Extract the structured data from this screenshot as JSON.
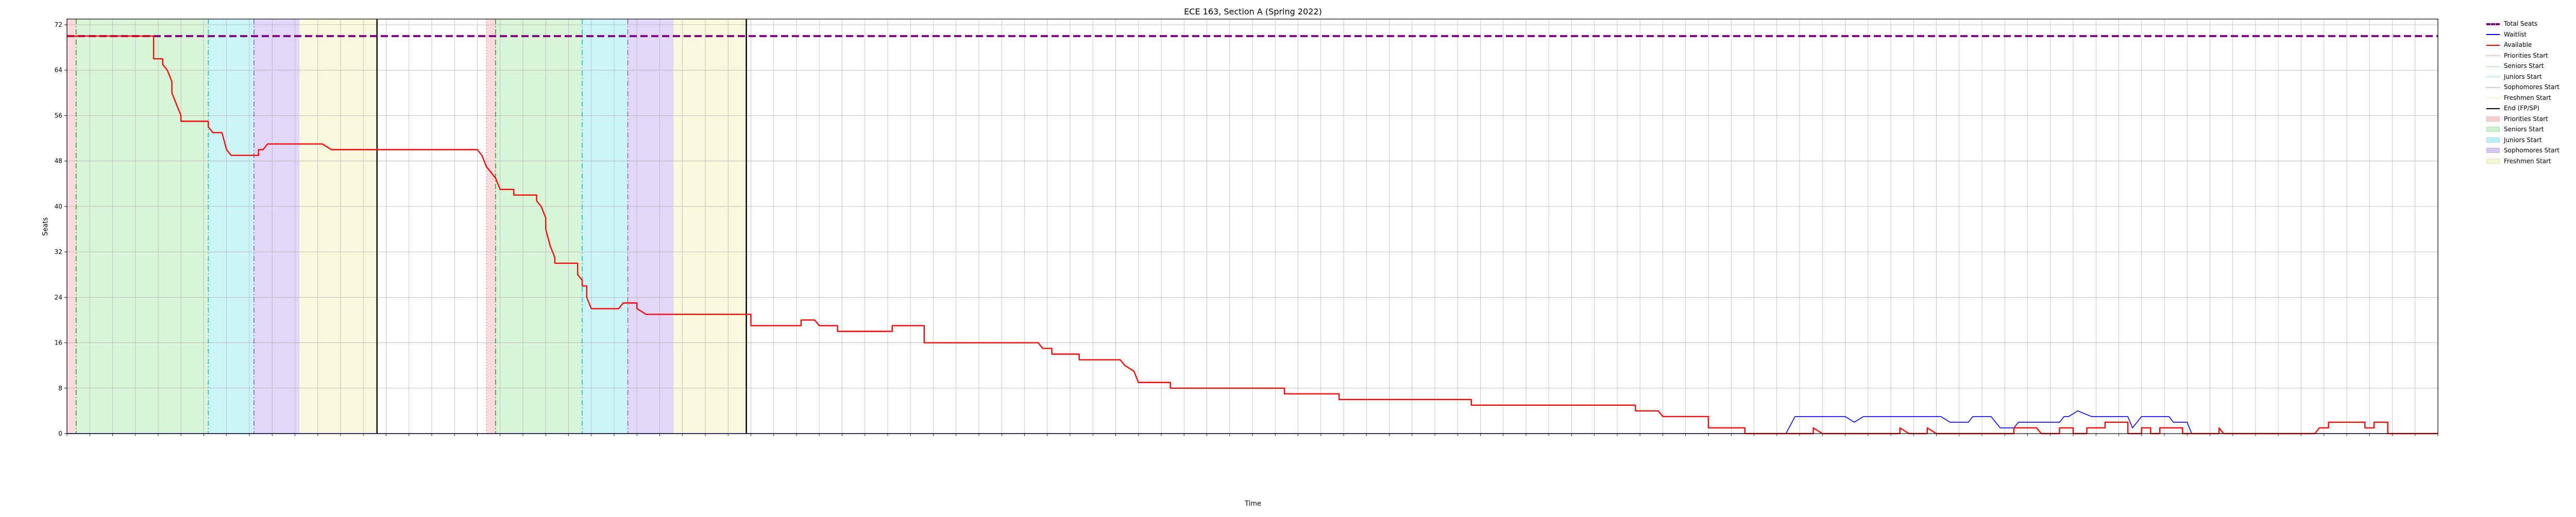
{
  "chart_data": {
    "type": "line",
    "title": "ECE 163, Section A (Spring 2022)",
    "xlabel": "Time",
    "ylabel": "Seats",
    "ylim": [
      0,
      73
    ],
    "yticks": [
      0,
      8,
      16,
      24,
      32,
      40,
      48,
      56,
      64,
      72
    ],
    "grid": true,
    "legend_position": "outside right, top",
    "x_is_time_index": true,
    "xlim": [
      0,
      520
    ],
    "colors": {
      "total": "#800080",
      "waitlist": "#0000ff",
      "available": "#ff0000",
      "priorities": "#f4a6a6",
      "seniors": "#9de59d",
      "juniors": "#7fe6ea",
      "sophomores": "#b39ae8",
      "freshmen": "#eeeeaa",
      "end": "#000000"
    },
    "series": [
      {
        "name": "Total Seats",
        "style": "dashed",
        "color_key": "total",
        "points": [
          [
            0,
            70
          ],
          [
            520,
            70
          ]
        ]
      },
      {
        "name": "Waitlist",
        "style": "solid",
        "color_key": "waitlist",
        "points": [
          [
            0,
            0
          ],
          [
            377,
            0
          ],
          [
            379,
            3
          ],
          [
            390,
            3
          ],
          [
            392,
            2
          ],
          [
            394,
            3
          ],
          [
            411,
            3
          ],
          [
            413,
            2
          ],
          [
            417,
            2
          ],
          [
            418,
            3
          ],
          [
            422,
            3
          ],
          [
            423,
            2
          ],
          [
            424,
            1
          ],
          [
            427,
            1
          ],
          [
            428,
            2
          ],
          [
            437,
            2
          ],
          [
            438,
            3
          ],
          [
            439,
            3
          ],
          [
            441,
            4
          ],
          [
            444,
            3
          ],
          [
            452,
            3
          ],
          [
            453,
            1
          ],
          [
            454,
            2
          ],
          [
            455,
            3
          ],
          [
            461,
            3
          ],
          [
            462,
            2
          ],
          [
            465,
            2
          ],
          [
            466,
            0
          ],
          [
            520,
            0
          ]
        ]
      },
      {
        "name": "Available",
        "style": "solid",
        "color_key": "available",
        "points": [
          [
            0,
            70
          ],
          [
            19,
            70
          ],
          [
            19,
            66
          ],
          [
            21,
            66
          ],
          [
            21,
            65
          ],
          [
            22,
            64
          ],
          [
            23,
            62
          ],
          [
            23,
            60
          ],
          [
            24,
            58
          ],
          [
            25,
            56
          ],
          [
            25,
            55
          ],
          [
            31,
            55
          ],
          [
            31,
            54
          ],
          [
            32,
            53
          ],
          [
            34,
            53
          ],
          [
            35,
            50
          ],
          [
            36,
            49
          ],
          [
            42,
            49
          ],
          [
            42,
            50
          ],
          [
            43,
            50
          ],
          [
            44,
            51
          ],
          [
            56,
            51
          ],
          [
            58,
            50
          ],
          [
            90,
            50
          ],
          [
            91,
            49
          ],
          [
            92,
            47
          ],
          [
            93,
            46
          ],
          [
            94,
            45
          ],
          [
            95,
            43
          ],
          [
            98,
            43
          ],
          [
            98,
            42
          ],
          [
            103,
            42
          ],
          [
            103,
            41
          ],
          [
            104,
            40
          ],
          [
            105,
            38
          ],
          [
            105,
            36
          ],
          [
            106,
            33
          ],
          [
            107,
            31
          ],
          [
            107,
            30
          ],
          [
            112,
            30
          ],
          [
            112,
            28
          ],
          [
            113,
            27
          ],
          [
            113,
            26
          ],
          [
            114,
            26
          ],
          [
            114,
            24
          ],
          [
            115,
            22
          ],
          [
            121,
            22
          ],
          [
            122,
            23
          ],
          [
            125,
            23
          ],
          [
            125,
            22
          ],
          [
            127,
            21
          ],
          [
            150,
            21
          ],
          [
            150,
            19
          ],
          [
            161,
            19
          ],
          [
            161,
            20
          ],
          [
            164,
            20
          ],
          [
            165,
            19
          ],
          [
            169,
            19
          ],
          [
            169,
            18
          ],
          [
            181,
            18
          ],
          [
            181,
            19
          ],
          [
            188,
            19
          ],
          [
            188,
            16
          ],
          [
            213,
            16
          ],
          [
            214,
            15
          ],
          [
            216,
            15
          ],
          [
            216,
            14
          ],
          [
            222,
            14
          ],
          [
            222,
            13
          ],
          [
            231,
            13
          ],
          [
            232,
            12
          ],
          [
            234,
            11
          ],
          [
            235,
            9
          ],
          [
            242,
            9
          ],
          [
            242,
            8
          ],
          [
            267,
            8
          ],
          [
            267,
            7
          ],
          [
            279,
            7
          ],
          [
            279,
            6
          ],
          [
            308,
            6
          ],
          [
            308,
            5
          ],
          [
            344,
            5
          ],
          [
            344,
            4
          ],
          [
            349,
            4
          ],
          [
            350,
            3
          ],
          [
            360,
            3
          ],
          [
            360,
            1
          ],
          [
            368,
            1
          ],
          [
            368,
            0
          ],
          [
            377,
            0
          ],
          [
            379,
            0
          ],
          [
            383,
            0
          ],
          [
            383,
            1
          ],
          [
            385,
            0
          ],
          [
            402,
            0
          ],
          [
            402,
            1
          ],
          [
            404,
            0
          ],
          [
            408,
            0
          ],
          [
            408,
            1
          ],
          [
            410,
            0
          ],
          [
            427,
            0
          ],
          [
            427,
            1
          ],
          [
            432,
            1
          ],
          [
            433,
            0
          ],
          [
            437,
            0
          ],
          [
            437,
            1
          ],
          [
            440,
            1
          ],
          [
            440,
            0
          ],
          [
            443,
            0
          ],
          [
            443,
            1
          ],
          [
            447,
            1
          ],
          [
            447,
            2
          ],
          [
            452,
            2
          ],
          [
            452,
            0
          ],
          [
            455,
            0
          ],
          [
            455,
            1
          ],
          [
            457,
            1
          ],
          [
            457,
            0
          ],
          [
            459,
            0
          ],
          [
            459,
            1
          ],
          [
            464,
            1
          ],
          [
            464,
            0
          ],
          [
            472,
            0
          ],
          [
            472,
            1
          ],
          [
            473,
            0
          ],
          [
            493,
            0
          ],
          [
            494,
            1
          ],
          [
            496,
            1
          ],
          [
            496,
            2
          ],
          [
            504,
            2
          ],
          [
            504,
            1
          ],
          [
            506,
            1
          ],
          [
            506,
            2
          ],
          [
            509,
            2
          ],
          [
            509,
            0
          ],
          [
            520,
            0
          ]
        ]
      }
    ],
    "spans": [
      {
        "name": "Priorities Start",
        "from": 0,
        "to": 2,
        "color_key": "priorities"
      },
      {
        "name": "Seniors Start",
        "from": 2,
        "to": 31,
        "color_key": "seniors"
      },
      {
        "name": "Juniors Start",
        "from": 31,
        "to": 41,
        "color_key": "juniors"
      },
      {
        "name": "Sophomores Start",
        "from": 41,
        "to": 51,
        "color_key": "sophomores"
      },
      {
        "name": "Freshmen Start",
        "from": 51,
        "to": 68,
        "color_key": "freshmen"
      },
      {
        "name": "Priorities Start",
        "from": 92,
        "to": 94,
        "color_key": "priorities"
      },
      {
        "name": "Seniors Start",
        "from": 94,
        "to": 113,
        "color_key": "seniors"
      },
      {
        "name": "Juniors Start",
        "from": 113,
        "to": 123,
        "color_key": "juniors"
      },
      {
        "name": "Sophomores Start",
        "from": 123,
        "to": 133,
        "color_key": "sophomores"
      },
      {
        "name": "Freshmen Start",
        "from": 133,
        "to": 149,
        "color_key": "freshmen"
      }
    ],
    "vlines": [
      {
        "name": "Priorities Start",
        "x": 0,
        "style": "dotted",
        "color": "#d08a8a"
      },
      {
        "name": "Seniors Start",
        "x": 2,
        "style": "dashdot",
        "color": "#2ca02c"
      },
      {
        "name": "Juniors Start",
        "x": 31,
        "style": "dashdot",
        "color": "#17becf"
      },
      {
        "name": "Sophomores Start",
        "x": 41,
        "style": "dashdot",
        "color": "#9467bd"
      },
      {
        "name": "End (FP/SP)",
        "x": 68,
        "style": "solid",
        "color": "#000000"
      },
      {
        "name": "Priorities Start",
        "x": 92,
        "style": "dotted",
        "color": "#d08a8a"
      },
      {
        "name": "Seniors Start",
        "x": 94,
        "style": "dashdot",
        "color": "#2ca02c"
      },
      {
        "name": "Juniors Start",
        "x": 113,
        "style": "dashdot",
        "color": "#17becf"
      },
      {
        "name": "Sophomores Start",
        "x": 123,
        "style": "dashdot",
        "color": "#9467bd"
      },
      {
        "name": "End (FP/SP)",
        "x": 149,
        "style": "solid",
        "color": "#000000"
      }
    ],
    "legend": [
      {
        "label": "Total Seats",
        "kind": "line",
        "color_key": "total",
        "style": "dashed"
      },
      {
        "label": "Waitlist",
        "kind": "line",
        "color_key": "waitlist",
        "style": "solid"
      },
      {
        "label": "Available",
        "kind": "line",
        "color_key": "available",
        "style": "solid"
      },
      {
        "label": "Priorities Start",
        "kind": "line",
        "color_key": "priorities",
        "style": "dotted"
      },
      {
        "label": "Seniors Start",
        "kind": "line",
        "color_key": "seniors",
        "style": "dashdot"
      },
      {
        "label": "Juniors Start",
        "kind": "line",
        "color_key": "juniors",
        "style": "dashdot"
      },
      {
        "label": "Sophomores Start",
        "kind": "line",
        "color_key": "sophomores",
        "style": "dashdot"
      },
      {
        "label": "Freshmen Start",
        "kind": "line",
        "color_key": "freshmen",
        "style": "dotted"
      },
      {
        "label": "End (FP/SP)",
        "kind": "line",
        "color_key": "end",
        "style": "solid"
      },
      {
        "label": "Priorities Start",
        "kind": "patch",
        "color_key": "priorities"
      },
      {
        "label": "Seniors Start",
        "kind": "patch",
        "color_key": "seniors"
      },
      {
        "label": "Juniors Start",
        "kind": "patch",
        "color_key": "juniors"
      },
      {
        "label": "Sophomores Start",
        "kind": "patch",
        "color_key": "sophomores"
      },
      {
        "label": "Freshmen Start",
        "kind": "patch",
        "color_key": "freshmen"
      }
    ]
  }
}
